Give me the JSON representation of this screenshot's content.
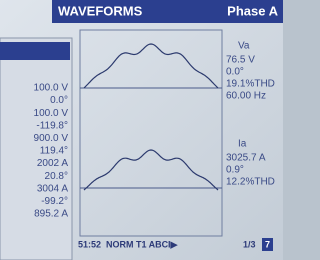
{
  "header": {
    "title": "WAVEFORMS",
    "phase": "Phase A"
  },
  "phasor_panel": {
    "values": [
      "100.0 V",
      "0.0°",
      "100.0 V",
      "-119.8°",
      "900.0 V",
      "119.4°",
      "2002 A",
      "20.8°",
      "3004 A",
      "-99.2°",
      "895.2 A"
    ]
  },
  "voltage": {
    "label": "Va",
    "lines": [
      "76.5 V",
      "0.0°",
      "19.1%THD",
      "60.00 Hz"
    ]
  },
  "current": {
    "label": "Ia",
    "lines": [
      "3025.7 A",
      "0.9°",
      "12.2%THD"
    ]
  },
  "status_bar": {
    "time": "51:52",
    "mode": "NORM T1 ABC",
    "arrow": "I▶",
    "page": "1/3",
    "key": "7"
  }
}
